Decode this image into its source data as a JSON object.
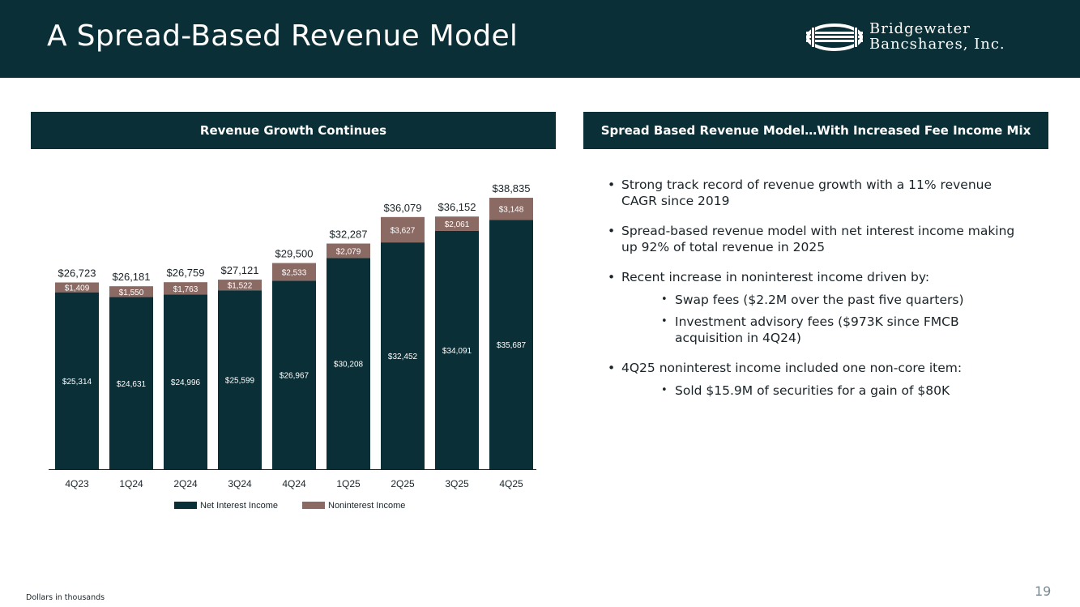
{
  "header": {
    "title": "A Spread-Based Revenue Model",
    "logo_line1": "Bridgewater",
    "logo_line2": "Bancshares, Inc."
  },
  "left_section": {
    "heading": "Revenue Growth Continues"
  },
  "right_section": {
    "heading": "Spread Based Revenue Model…With Increased Fee Income Mix",
    "bullets": [
      {
        "text": "Strong track record of revenue growth with a 11% revenue CAGR since 2019",
        "subs": []
      },
      {
        "text": "Spread-based revenue model with net interest income making up 92% of total revenue in 2025",
        "subs": []
      },
      {
        "text": "Recent increase in noninterest income driven by:",
        "subs": [
          "Swap fees ($2.2M over the past five quarters)",
          "Investment advisory fees ($973K since FMCB acquisition in 4Q24)"
        ]
      },
      {
        "text": "4Q25 noninterest income included one non-core item:",
        "subs": [
          "Sold $15.9M of securities for a gain of $80K"
        ]
      }
    ]
  },
  "footnote": "Dollars in thousands",
  "page_number": "19",
  "colors": {
    "navy": "#0b2f36",
    "fee": "#8b6a64",
    "white": "#ffffff"
  },
  "chart_data": {
    "type": "bar",
    "stacked": true,
    "categories": [
      "4Q23",
      "1Q24",
      "2Q24",
      "3Q24",
      "4Q24",
      "1Q25",
      "2Q25",
      "3Q25",
      "4Q25"
    ],
    "series": [
      {
        "name": "Net Interest Income",
        "color": "#0b2f36",
        "values": [
          25314,
          24631,
          24996,
          25599,
          26967,
          30208,
          32452,
          34091,
          35687
        ],
        "labels": [
          "$25,314",
          "$24,631",
          "$24,996",
          "$25,599",
          "$26,967",
          "$30,208",
          "$32,452",
          "$34,091",
          "$35,687"
        ]
      },
      {
        "name": "Noninterest Income",
        "color": "#8b6a64",
        "values": [
          1409,
          1550,
          1763,
          1522,
          2533,
          2079,
          3627,
          2061,
          3148
        ],
        "labels": [
          "$1,409",
          "$1,550",
          "$1,763",
          "$1,522",
          "$2,533",
          "$2,079",
          "$3,627",
          "$2,061",
          "$3,148"
        ]
      }
    ],
    "totals": [
      26723,
      26181,
      26759,
      27121,
      29500,
      32287,
      36079,
      36152,
      38835
    ],
    "total_labels": [
      "$26,723",
      "$26,181",
      "$26,759",
      "$27,121",
      "$29,500",
      "$32,287",
      "$36,079",
      "$36,152",
      "$38,835"
    ],
    "legend_position": "bottom-center",
    "ylim": [
      0,
      40000
    ]
  }
}
